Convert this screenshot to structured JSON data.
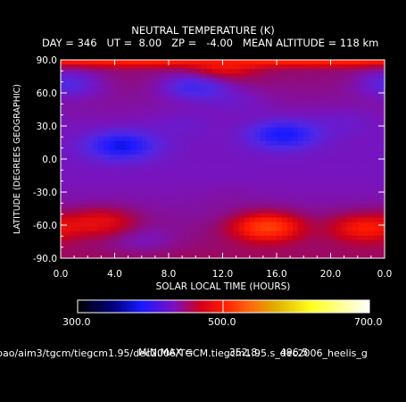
{
  "chart_data": {
    "type": "heatmap",
    "title": "NEUTRAL TEMPERATURE (K)",
    "subtitle": "DAY = 346   UT =  8.00   ZP =   -4.00   MEAN ALTITUDE = 118 km",
    "xlabel": "SOLAR LOCAL TIME (HOURS)",
    "ylabel": "LATITUDE (DEGREES GEOGRAPHIC)",
    "xticks": [
      "0.0",
      "4.0",
      "8.0",
      "12.0",
      "16.0",
      "20.0",
      "0.0"
    ],
    "yticks": [
      "90.0",
      "60.0",
      "30.0",
      "0.0",
      "-30.0",
      "-60.0",
      "-90.0"
    ],
    "xlim": [
      0,
      24
    ],
    "ylim": [
      -90,
      90
    ],
    "colorbar": {
      "labels": [
        "300.0",
        "500.0",
        "700.0"
      ],
      "range": [
        300,
        700
      ]
    },
    "minmax_label": "MIN,MAX =",
    "min": "352.8,",
    "max": "496.5",
    "field_features": [
      {
        "lt": 4.5,
        "lat": 12,
        "value": 352
      },
      {
        "lt": 16.5,
        "lat": 22,
        "value": 355
      },
      {
        "lt": 10,
        "lat": 66,
        "value": 372
      },
      {
        "lt": 0.5,
        "lat": 68,
        "value": 382
      },
      {
        "lt": 6,
        "lat": -72,
        "value": 400
      },
      {
        "lt": 12.5,
        "lat": -40,
        "value": 408
      },
      {
        "lt": 15.3,
        "lat": -62,
        "value": 496
      },
      {
        "lt": 22.5,
        "lat": -63,
        "value": 470
      },
      {
        "lt": 3,
        "lat": -58,
        "value": 458
      },
      {
        "lt": 9,
        "lat": 30,
        "value": 395
      },
      {
        "lt": 21,
        "lat": 32,
        "value": 395
      },
      {
        "lt": 13,
        "lat": 50,
        "value": 398
      },
      {
        "lt": 12,
        "lat": 86,
        "value": 470
      }
    ]
  },
  "source_path": "pao/aim3/tgcm/tiegcm1.95/dec2006/TGCM.tiegcm1.95.s_dec2006_heelis_g"
}
